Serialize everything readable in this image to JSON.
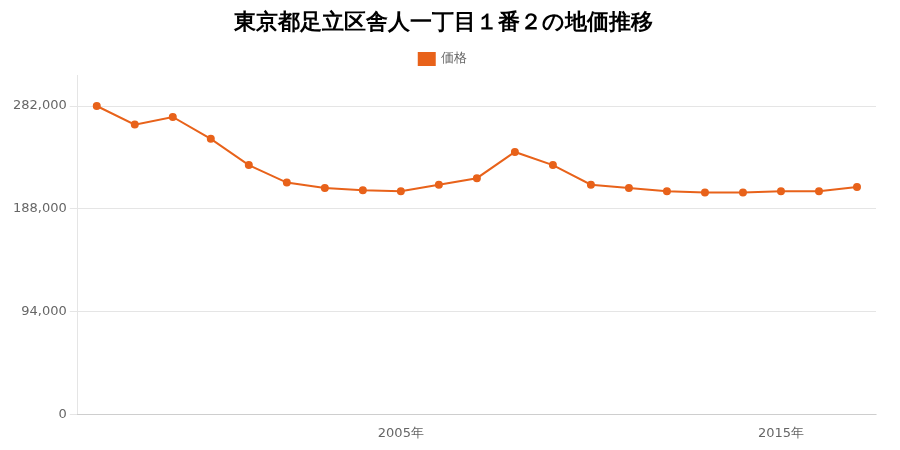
{
  "chart_data": {
    "type": "line",
    "title": "東京都足立区舎人一丁目１番２の地価推移",
    "x": [
      1997,
      1998,
      1999,
      2000,
      2001,
      2002,
      2003,
      2004,
      2005,
      2006,
      2007,
      2008,
      2009,
      2010,
      2011,
      2012,
      2013,
      2014,
      2015,
      2016,
      2017
    ],
    "series": [
      {
        "name": "価格",
        "color": "#e8621a",
        "marker": "circle",
        "values": [
          282000,
          265000,
          272000,
          252000,
          228000,
          212000,
          207000,
          205000,
          204000,
          210000,
          216000,
          240000,
          228000,
          210000,
          207000,
          204000,
          203000,
          203000,
          204000,
          204000,
          208000
        ]
      }
    ],
    "xlim": [
      1996.5,
      2017.5
    ],
    "xticks": [
      {
        "value": 2005,
        "label": "2005年"
      },
      {
        "value": 2015,
        "label": "2015年"
      }
    ],
    "ylim": [
      0,
      310000
    ],
    "yticks": [
      0,
      {
        "value": 94000,
        "label": "94,000"
      },
      {
        "value": 188000,
        "label": "188,000"
      },
      {
        "value": 282000,
        "label": "282,000"
      }
    ],
    "grid": true,
    "legend": "top"
  }
}
